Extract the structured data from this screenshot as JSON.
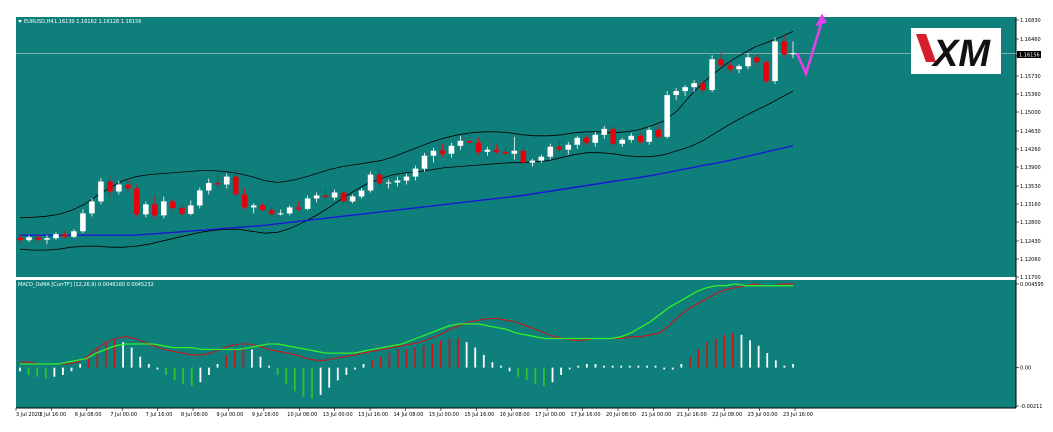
{
  "main_panel": {
    "symbol_label": "EURUSD,H4",
    "ohlc_label": "1.16130 1.16162 1.16128 1.16156",
    "current_price_label": "1.16156",
    "logo_text": "XM"
  },
  "indicator_panel": {
    "label": "MACD_OsMA [CurrTF] (12,26,9) 0.0046160 0.0045232"
  },
  "colors": {
    "background": "#0f7f7b",
    "bull_candle": "#ffffff",
    "bear_candle": "#e8000b",
    "bollinger": "#000000",
    "moving_average": "#1919d2",
    "macd_line": "#c8161d",
    "signal_line": "#32ee2a",
    "hist_up": "#c8161d",
    "hist_down": "#32c22a",
    "hist_neutral": "#ffffff",
    "forecast_arrow": "#e440e8"
  },
  "chart_data": [
    {
      "type": "candlestick",
      "title": "EURUSD,H4",
      "y_ticks": [
        "1.16830",
        "1.16460",
        "1.16156",
        "1.15730",
        "1.15360",
        "1.15000",
        "1.14630",
        "1.14260",
        "1.13900",
        "1.13530",
        "1.13160",
        "1.12800",
        "1.12430",
        "1.12060",
        "1.11700"
      ],
      "ylim": [
        1.117,
        1.1683
      ],
      "x_ticks": [
        "3 Jul 2020",
        "3 Jul 16:00",
        "6 Jul 08:00",
        "7 Jul 00:00",
        "7 Jul 16:00",
        "8 Jul 08:00",
        "9 Jul 00:00",
        "9 Jul 16:00",
        "10 Jul 08:00",
        "13 Jul 00:00",
        "13 Jul 16:00",
        "14 Jul 08:00",
        "15 Jul 00:00",
        "15 Jul 16:00",
        "16 Jul 08:00",
        "17 Jul 00:00",
        "17 Jul 16:00",
        "20 Jul 08:00",
        "21 Jul 00:00",
        "21 Jul 16:00",
        "22 Jul 08:00",
        "23 Jul 00:00",
        "23 Jul 16:00"
      ],
      "candles": [
        [
          1.1245,
          1.1252,
          1.1236,
          1.124
        ],
        [
          1.124,
          1.125,
          1.1236,
          1.1246
        ],
        [
          1.1246,
          1.1251,
          1.1235,
          1.1241
        ],
        [
          1.1241,
          1.125,
          1.1232,
          1.1244
        ],
        [
          1.1244,
          1.1256,
          1.1241,
          1.1252
        ],
        [
          1.1252,
          1.1258,
          1.1244,
          1.1247
        ],
        [
          1.1247,
          1.1262,
          1.1244,
          1.1258
        ],
        [
          1.1258,
          1.1302,
          1.1254,
          1.1294
        ],
        [
          1.1294,
          1.1325,
          1.1288,
          1.1318
        ],
        [
          1.1318,
          1.1365,
          1.1312,
          1.1358
        ],
        [
          1.1358,
          1.1368,
          1.1328,
          1.1338
        ],
        [
          1.1338,
          1.136,
          1.1332,
          1.1352
        ],
        [
          1.1352,
          1.1365,
          1.1336,
          1.1344
        ],
        [
          1.1344,
          1.1352,
          1.1286,
          1.1292
        ],
        [
          1.1292,
          1.1318,
          1.1286,
          1.1312
        ],
        [
          1.1312,
          1.133,
          1.1285,
          1.129
        ],
        [
          1.129,
          1.1328,
          1.1284,
          1.1318
        ],
        [
          1.1318,
          1.1322,
          1.13,
          1.1305
        ],
        [
          1.1305,
          1.1312,
          1.1289,
          1.1293
        ],
        [
          1.1293,
          1.132,
          1.129,
          1.131
        ],
        [
          1.131,
          1.1346,
          1.1304,
          1.134
        ],
        [
          1.134,
          1.1364,
          1.1332,
          1.1355
        ],
        [
          1.1355,
          1.137,
          1.1345,
          1.1352
        ],
        [
          1.1352,
          1.1374,
          1.1344,
          1.1368
        ],
        [
          1.1368,
          1.1382,
          1.1326,
          1.1332
        ],
        [
          1.1332,
          1.1345,
          1.1302,
          1.1306
        ],
        [
          1.1306,
          1.1314,
          1.1294,
          1.131
        ],
        [
          1.131,
          1.1314,
          1.1298,
          1.1301
        ],
        [
          1.1301,
          1.1308,
          1.1286,
          1.1292
        ],
        [
          1.1292,
          1.1302,
          1.129,
          1.1294
        ],
        [
          1.1294,
          1.131,
          1.129,
          1.1306
        ],
        [
          1.1306,
          1.1318,
          1.1298,
          1.1303
        ],
        [
          1.1303,
          1.133,
          1.13,
          1.1324
        ],
        [
          1.1324,
          1.1336,
          1.1316,
          1.133
        ],
        [
          1.133,
          1.1344,
          1.132,
          1.1326
        ],
        [
          1.1326,
          1.1342,
          1.132,
          1.1336
        ],
        [
          1.1336,
          1.134,
          1.131,
          1.1318
        ],
        [
          1.1318,
          1.1332,
          1.1314,
          1.1328
        ],
        [
          1.1328,
          1.1345,
          1.1324,
          1.134
        ],
        [
          1.134,
          1.1378,
          1.1336,
          1.1372
        ],
        [
          1.1372,
          1.1386,
          1.1348,
          1.1354
        ],
        [
          1.1354,
          1.1362,
          1.1344,
          1.1356
        ],
        [
          1.1356,
          1.1368,
          1.1348,
          1.136
        ],
        [
          1.136,
          1.1374,
          1.1352,
          1.1368
        ],
        [
          1.1368,
          1.139,
          1.136,
          1.1384
        ],
        [
          1.1384,
          1.1416,
          1.1378,
          1.141
        ],
        [
          1.141,
          1.1426,
          1.1396,
          1.142
        ],
        [
          1.142,
          1.1434,
          1.1408,
          1.1414
        ],
        [
          1.1414,
          1.1436,
          1.1406,
          1.143
        ],
        [
          1.143,
          1.145,
          1.1422,
          1.144
        ],
        [
          1.144,
          1.1462,
          1.1432,
          1.1436
        ],
        [
          1.1436,
          1.1446,
          1.1412,
          1.1418
        ],
        [
          1.1418,
          1.1428,
          1.141,
          1.1422
        ],
        [
          1.1422,
          1.1432,
          1.1414,
          1.1418
        ],
        [
          1.1418,
          1.1426,
          1.141,
          1.1414
        ],
        [
          1.1414,
          1.1448,
          1.1402,
          1.142
        ],
        [
          1.142,
          1.1428,
          1.1392,
          1.1396
        ],
        [
          1.1396,
          1.1404,
          1.1388,
          1.14
        ],
        [
          1.14,
          1.1412,
          1.1396,
          1.1408
        ],
        [
          1.1408,
          1.1434,
          1.1402,
          1.1428
        ],
        [
          1.1428,
          1.144,
          1.1416,
          1.1422
        ],
        [
          1.1422,
          1.1438,
          1.1412,
          1.1432
        ],
        [
          1.1432,
          1.145,
          1.1424,
          1.1446
        ],
        [
          1.1446,
          1.1452,
          1.1432,
          1.1436
        ],
        [
          1.1436,
          1.1458,
          1.1428,
          1.1452
        ],
        [
          1.1452,
          1.147,
          1.1444,
          1.1464
        ],
        [
          1.1464,
          1.1472,
          1.1428,
          1.1434
        ],
        [
          1.1434,
          1.1446,
          1.1428,
          1.1442
        ],
        [
          1.1442,
          1.1456,
          1.1436,
          1.145
        ],
        [
          1.145,
          1.1456,
          1.1434,
          1.1438
        ],
        [
          1.1438,
          1.1468,
          1.1432,
          1.1462
        ],
        [
          1.1462,
          1.147,
          1.1444,
          1.1448
        ],
        [
          1.1448,
          1.154,
          1.1444,
          1.1532
        ],
        [
          1.1532,
          1.1546,
          1.1522,
          1.154
        ],
        [
          1.154,
          1.1552,
          1.153,
          1.1548
        ],
        [
          1.1548,
          1.1562,
          1.1538,
          1.1556
        ],
        [
          1.1556,
          1.1562,
          1.1534,
          1.1542
        ],
        [
          1.1542,
          1.1612,
          1.1538,
          1.1604
        ],
        [
          1.1604,
          1.1618,
          1.1586,
          1.1592
        ],
        [
          1.1592,
          1.1598,
          1.1576,
          1.1584
        ],
        [
          1.1584,
          1.1594,
          1.1576,
          1.159
        ],
        [
          1.159,
          1.1616,
          1.1584,
          1.1608
        ],
        [
          1.1608,
          1.1614,
          1.159,
          1.1598
        ],
        [
          1.1598,
          1.1604,
          1.1554,
          1.156
        ],
        [
          1.156,
          1.1648,
          1.1554,
          1.164
        ],
        [
          1.164,
          1.1654,
          1.1608,
          1.1614
        ],
        [
          1.1614,
          1.164,
          1.1606,
          1.1616
        ]
      ],
      "bollinger_upper": [
        1.1285,
        1.1286,
        1.1288,
        1.1292,
        1.13,
        1.1312,
        1.133,
        1.1346,
        1.136,
        1.1368,
        1.1372,
        1.1374,
        1.1376,
        1.1378,
        1.138,
        1.138,
        1.1378,
        1.1374,
        1.1368,
        1.136,
        1.1356,
        1.136,
        1.1366,
        1.1374,
        1.1382,
        1.1388,
        1.1392,
        1.1396,
        1.14,
        1.1408,
        1.1418,
        1.1428,
        1.1438,
        1.1446,
        1.1452,
        1.1456,
        1.1458,
        1.1458,
        1.1456,
        1.1452,
        1.145,
        1.145,
        1.1452,
        1.1456,
        1.1458,
        1.1458,
        1.1456,
        1.1458,
        1.1462,
        1.147,
        1.148,
        1.15,
        1.153,
        1.1556,
        1.1578,
        1.1598,
        1.1614,
        1.1628,
        1.1638,
        1.1648,
        1.166
      ],
      "bollinger_lower": [
        1.1222,
        1.122,
        1.122,
        1.1222,
        1.1226,
        1.1228,
        1.1228,
        1.1226,
        1.1226,
        1.1228,
        1.1232,
        1.1238,
        1.1244,
        1.125,
        1.1256,
        1.126,
        1.1262,
        1.1262,
        1.1258,
        1.1254,
        1.1256,
        1.1264,
        1.1276,
        1.129,
        1.1306,
        1.1324,
        1.134,
        1.1354,
        1.1364,
        1.1372,
        1.1376,
        1.1378,
        1.1382,
        1.1386,
        1.1388,
        1.139,
        1.1392,
        1.1394,
        1.1396,
        1.1396,
        1.1398,
        1.14,
        1.1406,
        1.1412,
        1.1416,
        1.1416,
        1.1414,
        1.141,
        1.1408,
        1.1408,
        1.1412,
        1.142,
        1.1428,
        1.144,
        1.1456,
        1.1472,
        1.1486,
        1.15,
        1.1512,
        1.1526,
        1.154
      ],
      "moving_average": [
        1.125,
        1.125,
        1.125,
        1.125,
        1.125,
        1.125,
        1.125,
        1.125,
        1.125,
        1.125,
        1.1252,
        1.1254,
        1.1256,
        1.1258,
        1.126,
        1.1262,
        1.1264,
        1.1266,
        1.1268,
        1.127,
        1.1273,
        1.1276,
        1.1279,
        1.1282,
        1.1285,
        1.1288,
        1.1291,
        1.1294,
        1.1297,
        1.13,
        1.1303,
        1.1306,
        1.1309,
        1.1312,
        1.1315,
        1.1318,
        1.1321,
        1.1324,
        1.1327,
        1.133,
        1.1334,
        1.1338,
        1.1342,
        1.1346,
        1.135,
        1.1354,
        1.1358,
        1.1362,
        1.1366,
        1.137,
        1.1375,
        1.138,
        1.1385,
        1.139,
        1.1395,
        1.14,
        1.1406,
        1.1412,
        1.1418,
        1.1424,
        1.143
      ],
      "forecast": {
        "direction": "down-then-up",
        "from": 1.1616,
        "low": 1.1575,
        "to": 1.1686
      }
    },
    {
      "type": "bar",
      "title": "MACD_OsMA [CurrTF] (12,26,9) 0.0046160 0.0045232",
      "y_ticks": [
        "0.004595",
        "0.00",
        "-0.00211"
      ],
      "ylim": [
        -0.00211,
        0.004595
      ],
      "histogram": [
        -0.0002,
        -0.0004,
        -0.0005,
        -0.0006,
        -0.0005,
        -0.0004,
        -0.0002,
        0.0002,
        0.0006,
        0.0011,
        0.0014,
        0.0015,
        0.0014,
        0.0011,
        0.0006,
        0.0002,
        -0.0001,
        -0.0004,
        -0.0007,
        -0.0009,
        -0.001,
        -0.0008,
        -0.0004,
        0.0002,
        0.0007,
        0.001,
        0.0011,
        0.001,
        0.0006,
        0.0001,
        -0.0004,
        -0.0009,
        -0.0013,
        -0.0016,
        -0.0017,
        -0.0015,
        -0.0011,
        -0.0007,
        -0.0004,
        -0.0001,
        0.0002,
        0.0004,
        0.0006,
        0.0008,
        0.001,
        0.001,
        0.0011,
        0.0012,
        0.0013,
        0.0015,
        0.0016,
        0.0016,
        0.0014,
        0.0011,
        0.0007,
        0.0003,
        0.0001,
        -0.0002,
        -0.0005,
        -0.0007,
        -0.0009,
        -0.001,
        -0.0008,
        -0.0004,
        -0.0001,
        0.0001,
        0.0002,
        0.0002,
        0.0001,
        0.0001,
        0.0001,
        0.0001,
        0.0001,
        0.0001,
        0.0001,
        -0.0001,
        -0.0001,
        0.0002,
        0.0006,
        0.001,
        0.0014,
        0.0016,
        0.0018,
        0.0019,
        0.0018,
        0.0015,
        0.0012,
        0.0008,
        0.0004,
        0.0001,
        0.0002
      ],
      "macd": [
        0.0003,
        0.0003,
        0.0002,
        0.0002,
        0.0002,
        0.0002,
        0.0003,
        0.0006,
        0.001,
        0.0014,
        0.0016,
        0.0017,
        0.0016,
        0.0014,
        0.0012,
        0.001,
        0.0009,
        0.0008,
        0.0007,
        0.0007,
        0.0008,
        0.001,
        0.0012,
        0.0013,
        0.0013,
        0.0012,
        0.001,
        0.0009,
        0.0008,
        0.0007,
        0.0005,
        0.0004,
        0.0004,
        0.0005,
        0.0006,
        0.0007,
        0.0008,
        0.0009,
        0.001,
        0.0011,
        0.0012,
        0.0013,
        0.0014,
        0.0016,
        0.0018,
        0.0021,
        0.0023,
        0.0025,
        0.0026,
        0.0027,
        0.0027,
        0.0026,
        0.0025,
        0.0023,
        0.0021,
        0.0019,
        0.0017,
        0.0016,
        0.0015,
        0.0015,
        0.0016,
        0.0016,
        0.0016,
        0.0016,
        0.0017,
        0.0017,
        0.0018,
        0.0019,
        0.0023,
        0.0028,
        0.0032,
        0.0035,
        0.0038,
        0.0041,
        0.0043,
        0.0044,
        0.0045,
        0.0046,
        0.0045,
        0.0045,
        0.0046,
        0.0046
      ],
      "signal": [
        0.0002,
        0.0002,
        0.0002,
        0.0002,
        0.0002,
        0.0003,
        0.0004,
        0.0005,
        0.0008,
        0.001,
        0.0012,
        0.0013,
        0.0013,
        0.0013,
        0.0013,
        0.0012,
        0.0011,
        0.0011,
        0.0011,
        0.001,
        0.001,
        0.001,
        0.001,
        0.001,
        0.0011,
        0.0012,
        0.0013,
        0.0013,
        0.0012,
        0.0011,
        0.001,
        0.0009,
        0.0008,
        0.0008,
        0.0008,
        0.0008,
        0.0009,
        0.001,
        0.0011,
        0.0012,
        0.0013,
        0.0015,
        0.0017,
        0.0019,
        0.0021,
        0.0023,
        0.0024,
        0.0024,
        0.0024,
        0.0023,
        0.0022,
        0.0021,
        0.0019,
        0.0018,
        0.0017,
        0.0016,
        0.0016,
        0.0016,
        0.0016,
        0.0016,
        0.0016,
        0.0016,
        0.0016,
        0.0017,
        0.0019,
        0.0022,
        0.0025,
        0.0029,
        0.0033,
        0.0036,
        0.0039,
        0.0042,
        0.0044,
        0.0045,
        0.0045,
        0.0046,
        0.0045,
        0.0045,
        0.0045,
        0.0045,
        0.0045,
        0.0045
      ]
    }
  ]
}
